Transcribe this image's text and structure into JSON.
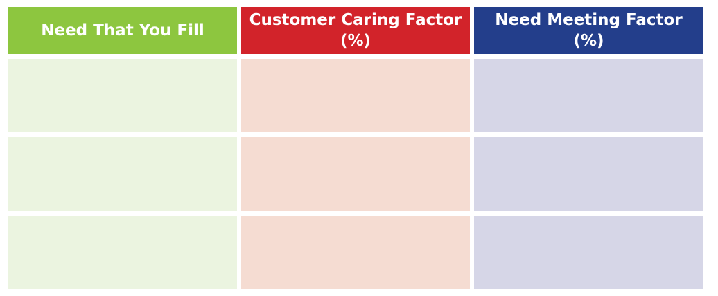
{
  "table": {
    "headers": [
      {
        "line1": "Need That You Fill",
        "line2": ""
      },
      {
        "line1": "Customer Caring Factor",
        "line2": "(%)"
      },
      {
        "line1": "Need Meeting Factor",
        "line2": "(%)"
      }
    ],
    "rows": [
      [
        "",
        "",
        ""
      ],
      [
        "",
        "",
        ""
      ],
      [
        "",
        "",
        ""
      ]
    ]
  },
  "colors": {
    "green_header": "#8dc63f",
    "red_header": "#d2232a",
    "blue_header": "#233e8b",
    "green_cell": "#ebf4e0",
    "red_cell": "#f5dcd2",
    "blue_cell": "#d6d6e7"
  }
}
